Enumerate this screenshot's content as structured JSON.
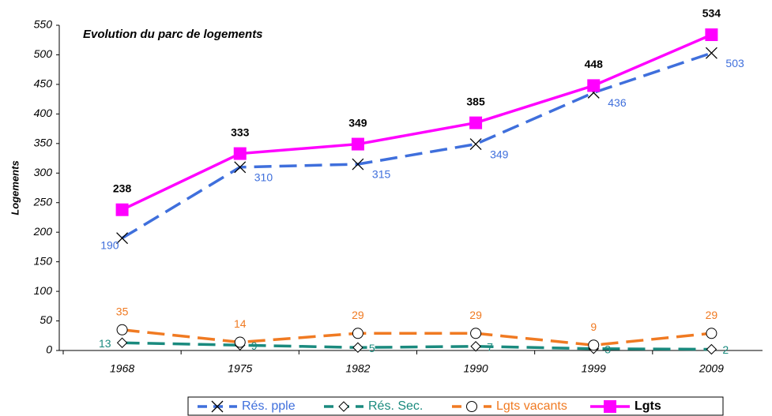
{
  "chart_data": {
    "type": "line",
    "title": "Evolution du parc de logements",
    "y_label": "Logements",
    "categories": [
      "1968",
      "1975",
      "1982",
      "1990",
      "1999",
      "2009"
    ],
    "ylim": [
      0,
      550
    ],
    "yticks": [
      0,
      50,
      100,
      150,
      200,
      250,
      300,
      350,
      400,
      450,
      500,
      550
    ],
    "legend": "bottom",
    "series": [
      {
        "name": "Rés. pple",
        "color": "#3f6fdc",
        "dash": true,
        "marker": "x",
        "values": [
          190,
          310,
          315,
          349,
          436,
          503
        ]
      },
      {
        "name": "Rés. Sec.",
        "color": "#1a8a7e",
        "dash": true,
        "marker": "diamond",
        "values": [
          13,
          9,
          5,
          7,
          3,
          2
        ]
      },
      {
        "name": "Lgts vacants",
        "color": "#f07a22",
        "dash": true,
        "marker": "circle",
        "values": [
          35,
          14,
          29,
          29,
          9,
          29
        ]
      },
      {
        "name": "Lgts",
        "color": "#ff00ff",
        "dash": false,
        "marker": "square",
        "values": [
          238,
          333,
          349,
          385,
          448,
          534
        ]
      }
    ]
  }
}
